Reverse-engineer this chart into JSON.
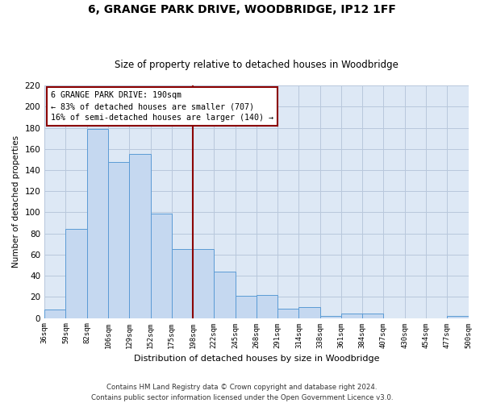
{
  "title": "6, GRANGE PARK DRIVE, WOODBRIDGE, IP12 1FF",
  "subtitle": "Size of property relative to detached houses in Woodbridge",
  "xlabel": "Distribution of detached houses by size in Woodbridge",
  "ylabel": "Number of detached properties",
  "bar_color": "#c5d8f0",
  "bar_edge_color": "#5b9bd5",
  "background_color": "#dde8f5",
  "bins": [
    "36sqm",
    "59sqm",
    "82sqm",
    "106sqm",
    "129sqm",
    "152sqm",
    "175sqm",
    "198sqm",
    "222sqm",
    "245sqm",
    "268sqm",
    "291sqm",
    "314sqm",
    "338sqm",
    "361sqm",
    "384sqm",
    "407sqm",
    "430sqm",
    "454sqm",
    "477sqm",
    "500sqm"
  ],
  "values": [
    8,
    84,
    179,
    148,
    155,
    99,
    65,
    65,
    44,
    21,
    22,
    9,
    10,
    2,
    4,
    4,
    0,
    0,
    0,
    2
  ],
  "ylim": [
    0,
    220
  ],
  "yticks": [
    0,
    20,
    40,
    60,
    80,
    100,
    120,
    140,
    160,
    180,
    200,
    220
  ],
  "marker_label": "6 GRANGE PARK DRIVE: 190sqm",
  "annotation_line1": "← 83% of detached houses are smaller (707)",
  "annotation_line2": "16% of semi-detached houses are larger (140) →",
  "footer_line1": "Contains HM Land Registry data © Crown copyright and database right 2024.",
  "footer_line2": "Contains public sector information licensed under the Open Government Licence v3.0.",
  "grid_color": "#b8c8dc",
  "vline_color": "#8b0000",
  "annotation_box_edge": "#8b0000",
  "title_fontsize": 10,
  "subtitle_fontsize": 8.5
}
